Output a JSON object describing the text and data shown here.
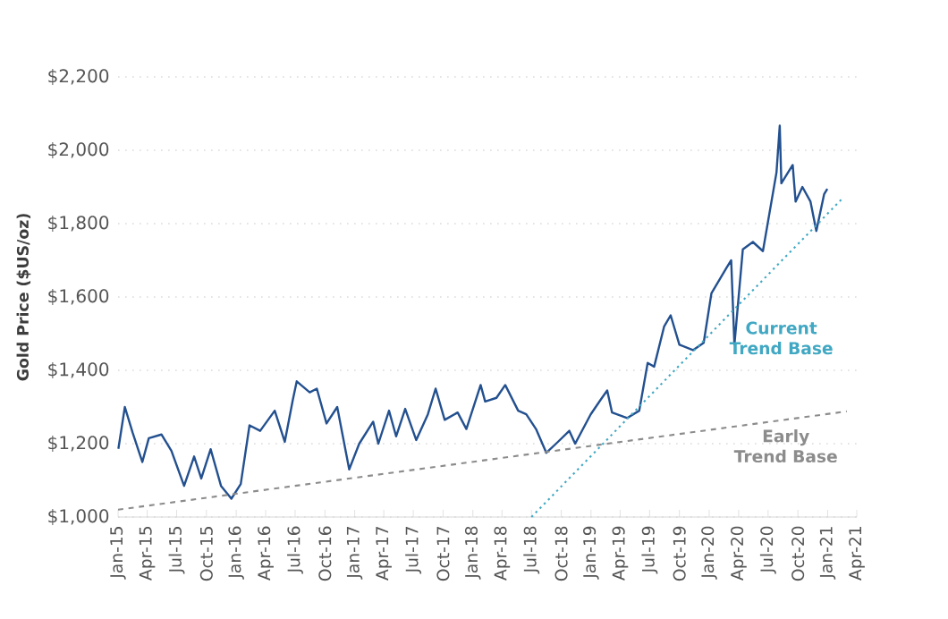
{
  "chart_data": {
    "type": "line",
    "ylabel": "Gold Price ($US/oz)",
    "ylim": [
      1000,
      2200
    ],
    "yticks": [
      {
        "value": 1000,
        "label": "$1,000"
      },
      {
        "value": 1200,
        "label": "$1,200"
      },
      {
        "value": 1400,
        "label": "$1,400"
      },
      {
        "value": 1600,
        "label": "$1,600"
      },
      {
        "value": 1800,
        "label": "$1,800"
      },
      {
        "value": 2000,
        "label": "$2,000"
      },
      {
        "value": 2200,
        "label": "$2,200"
      }
    ],
    "xlim": [
      "2015-01-01",
      "2021-04-01"
    ],
    "xticks": [
      {
        "value": "2015-01-01",
        "label": "Jan-15"
      },
      {
        "value": "2015-04-01",
        "label": "Apr-15"
      },
      {
        "value": "2015-07-01",
        "label": "Jul-15"
      },
      {
        "value": "2015-10-01",
        "label": "Oct-15"
      },
      {
        "value": "2016-01-01",
        "label": "Jan-16"
      },
      {
        "value": "2016-04-01",
        "label": "Apr-16"
      },
      {
        "value": "2016-07-01",
        "label": "Jul-16"
      },
      {
        "value": "2016-10-01",
        "label": "Oct-16"
      },
      {
        "value": "2017-01-01",
        "label": "Jan-17"
      },
      {
        "value": "2017-04-01",
        "label": "Apr-17"
      },
      {
        "value": "2017-07-01",
        "label": "Jul-17"
      },
      {
        "value": "2017-10-01",
        "label": "Oct-17"
      },
      {
        "value": "2018-01-01",
        "label": "Jan-18"
      },
      {
        "value": "2018-04-01",
        "label": "Apr-18"
      },
      {
        "value": "2018-07-01",
        "label": "Jul-18"
      },
      {
        "value": "2018-10-01",
        "label": "Oct-18"
      },
      {
        "value": "2019-01-01",
        "label": "Jan-19"
      },
      {
        "value": "2019-04-01",
        "label": "Apr-19"
      },
      {
        "value": "2019-07-01",
        "label": "Jul-19"
      },
      {
        "value": "2019-10-01",
        "label": "Oct-19"
      },
      {
        "value": "2020-01-01",
        "label": "Jan-20"
      },
      {
        "value": "2020-04-01",
        "label": "Apr-20"
      },
      {
        "value": "2020-07-01",
        "label": "Jul-20"
      },
      {
        "value": "2020-10-01",
        "label": "Oct-20"
      },
      {
        "value": "2021-01-01",
        "label": "Jan-21"
      },
      {
        "value": "2021-04-01",
        "label": "Apr-21"
      }
    ],
    "grid": "y",
    "legend": false,
    "marker": "none",
    "series": [
      {
        "color": "#23508f",
        "line_style": "solid",
        "x": [
          "2015-01-02",
          "2015-01-22",
          "2015-02-15",
          "2015-03-17",
          "2015-04-06",
          "2015-05-15",
          "2015-06-15",
          "2015-07-24",
          "2015-08-24",
          "2015-09-15",
          "2015-10-14",
          "2015-11-15",
          "2015-12-17",
          "2016-01-15",
          "2016-02-11",
          "2016-03-15",
          "2016-04-29",
          "2016-05-30",
          "2016-06-24",
          "2016-07-06",
          "2016-08-15",
          "2016-09-06",
          "2016-10-06",
          "2016-11-08",
          "2016-12-15",
          "2017-01-15",
          "2017-02-27",
          "2017-03-15",
          "2017-04-17",
          "2017-05-09",
          "2017-06-06",
          "2017-07-10",
          "2017-08-15",
          "2017-09-08",
          "2017-10-06",
          "2017-11-15",
          "2017-12-12",
          "2018-01-25",
          "2018-02-08",
          "2018-03-15",
          "2018-04-11",
          "2018-05-21",
          "2018-06-15",
          "2018-07-15",
          "2018-08-16",
          "2018-09-15",
          "2018-10-26",
          "2018-11-13",
          "2018-12-31",
          "2019-01-31",
          "2019-02-20",
          "2019-03-07",
          "2019-04-23",
          "2019-05-30",
          "2019-06-25",
          "2019-07-15",
          "2019-08-15",
          "2019-09-04",
          "2019-10-01",
          "2019-11-12",
          "2019-12-15",
          "2020-01-08",
          "2020-02-24",
          "2020-03-09",
          "2020-03-19",
          "2020-04-14",
          "2020-05-15",
          "2020-06-15",
          "2020-07-27",
          "2020-08-06",
          "2020-08-11",
          "2020-09-15",
          "2020-09-24",
          "2020-10-15",
          "2020-11-09",
          "2020-11-27",
          "2020-12-21",
          "2020-12-31"
        ],
        "values": [
          1186,
          1300,
          1230,
          1150,
          1215,
          1225,
          1180,
          1085,
          1165,
          1105,
          1185,
          1085,
          1050,
          1090,
          1250,
          1235,
          1290,
          1205,
          1320,
          1370,
          1340,
          1350,
          1255,
          1300,
          1130,
          1200,
          1260,
          1200,
          1290,
          1220,
          1295,
          1210,
          1280,
          1350,
          1265,
          1285,
          1240,
          1360,
          1315,
          1325,
          1360,
          1290,
          1280,
          1240,
          1175,
          1200,
          1235,
          1200,
          1280,
          1320,
          1345,
          1285,
          1270,
          1290,
          1420,
          1410,
          1520,
          1550,
          1470,
          1455,
          1475,
          1610,
          1680,
          1700,
          1470,
          1730,
          1750,
          1725,
          1940,
          2067,
          1910,
          1960,
          1860,
          1900,
          1860,
          1780,
          1880,
          1895
        ]
      },
      {
        "name": "Current Trend Base",
        "color": "#41a8c3",
        "line_style": "dotted",
        "x": [
          "2018-07-01",
          "2021-02-15"
        ],
        "values": [
          1000,
          1868
        ]
      },
      {
        "name": "Early Trend Base",
        "color": "#8c8c8c",
        "line_style": "dashed",
        "x": [
          "2015-01-01",
          "2021-03-01"
        ],
        "values": [
          1020,
          1288
        ]
      }
    ]
  }
}
